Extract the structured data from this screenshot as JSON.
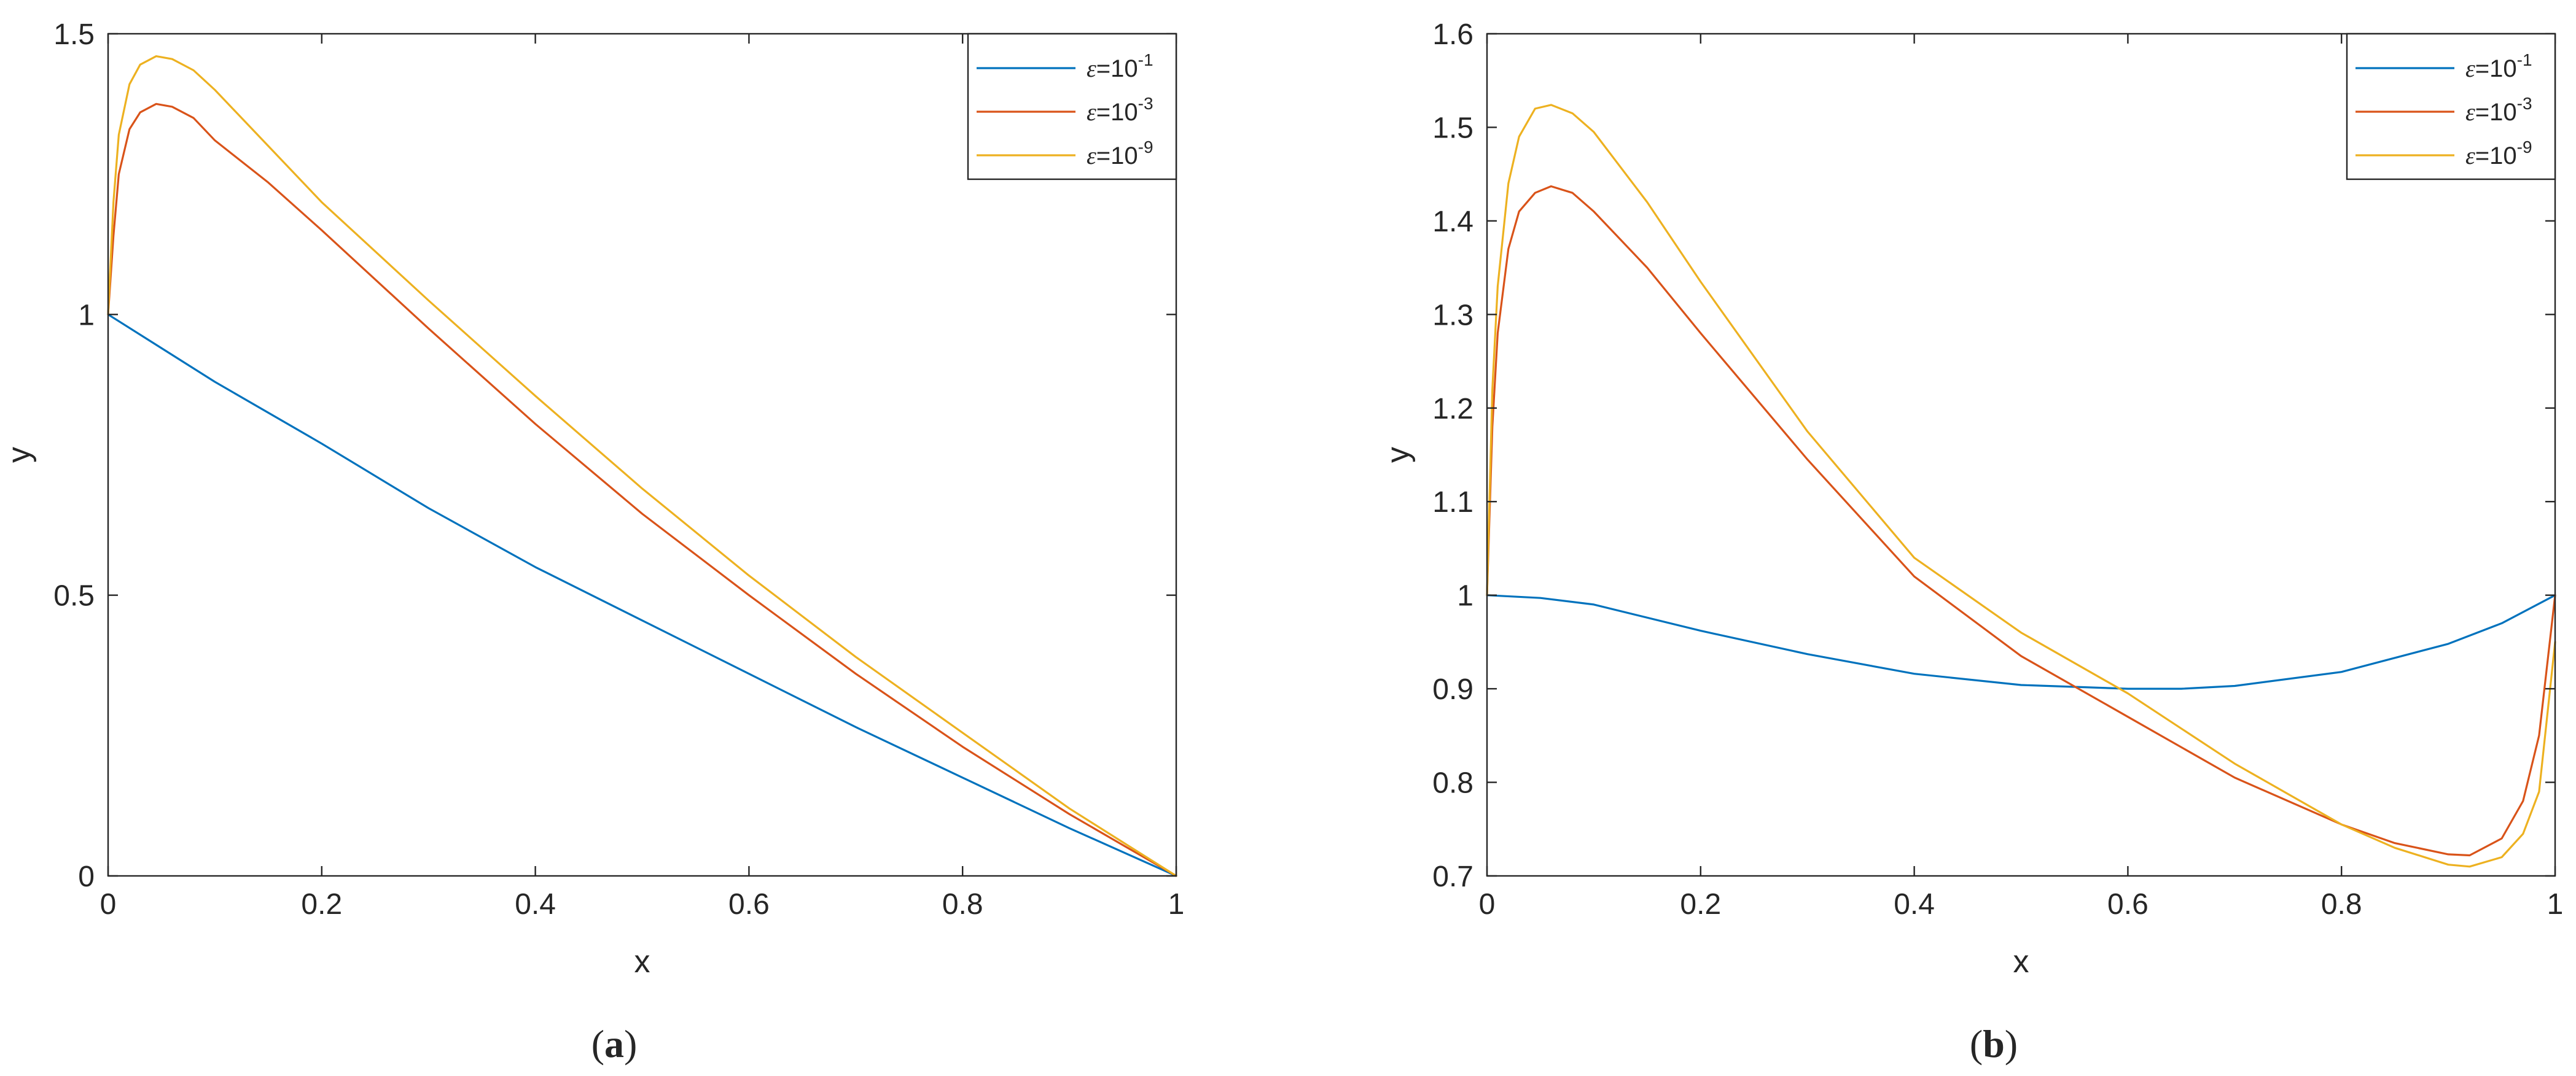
{
  "figure": {
    "captions": [
      "(a)",
      "(b)"
    ]
  },
  "legend": {
    "eps_symbol": "ε",
    "entries": [
      {
        "base": "=10",
        "exp": "-1"
      },
      {
        "base": "=10",
        "exp": "-3"
      },
      {
        "base": "=10",
        "exp": "-9"
      }
    ]
  },
  "colors": {
    "series": [
      "#0072BD",
      "#D95319",
      "#EDB120"
    ],
    "axis": "#262626",
    "background": "#ffffff"
  },
  "chart_data": [
    {
      "type": "line",
      "panel": "a",
      "xlabel": "x",
      "ylabel": "y",
      "xlim": [
        0,
        1
      ],
      "ylim": [
        0,
        1.5
      ],
      "xticks": [
        0,
        0.2,
        0.4,
        0.6,
        0.8,
        1
      ],
      "yticks": [
        0,
        0.5,
        1,
        1.5
      ],
      "xtick_labels": [
        "0",
        "0.2",
        "0.4",
        "0.6",
        "0.8",
        "1"
      ],
      "ytick_labels": [
        "0",
        "0.5",
        "1",
        "1.5"
      ],
      "legend_position": "top-right",
      "grid": false,
      "series": [
        {
          "x": [
            0,
            0.1,
            0.2,
            0.3,
            0.4,
            0.5,
            0.6,
            0.7,
            0.8,
            0.9,
            1.0
          ],
          "values": [
            1.0,
            0.88,
            0.77,
            0.655,
            0.55,
            0.455,
            0.36,
            0.265,
            0.175,
            0.085,
            0.0
          ]
        },
        {
          "x": [
            0,
            0.005,
            0.01,
            0.02,
            0.03,
            0.045,
            0.06,
            0.08,
            0.1,
            0.15,
            0.2,
            0.3,
            0.4,
            0.5,
            0.6,
            0.7,
            0.8,
            0.9,
            0.95,
            1.0
          ],
          "values": [
            1.0,
            1.14,
            1.25,
            1.33,
            1.36,
            1.375,
            1.37,
            1.35,
            1.31,
            1.235,
            1.15,
            0.975,
            0.805,
            0.645,
            0.5,
            0.36,
            0.23,
            0.11,
            0.055,
            0.0
          ]
        },
        {
          "x": [
            0,
            0.005,
            0.01,
            0.02,
            0.03,
            0.045,
            0.06,
            0.08,
            0.1,
            0.15,
            0.2,
            0.3,
            0.4,
            0.5,
            0.6,
            0.7,
            0.8,
            0.9,
            0.95,
            1.0
          ],
          "values": [
            1.0,
            1.2,
            1.32,
            1.41,
            1.445,
            1.46,
            1.455,
            1.435,
            1.4,
            1.3,
            1.2,
            1.025,
            0.855,
            0.69,
            0.535,
            0.39,
            0.255,
            0.12,
            0.06,
            0.0
          ]
        }
      ]
    },
    {
      "type": "line",
      "panel": "b",
      "xlabel": "x",
      "ylabel": "y",
      "xlim": [
        0,
        1
      ],
      "ylim": [
        0.7,
        1.6
      ],
      "xticks": [
        0,
        0.2,
        0.4,
        0.6,
        0.8,
        1
      ],
      "yticks": [
        0.7,
        0.8,
        0.9,
        1,
        1.1,
        1.2,
        1.3,
        1.4,
        1.5,
        1.6
      ],
      "xtick_labels": [
        "0",
        "0.2",
        "0.4",
        "0.6",
        "0.8",
        "1"
      ],
      "ytick_labels": [
        "0.7",
        "0.8",
        "0.9",
        "1",
        "1.1",
        "1.2",
        "1.3",
        "1.4",
        "1.5",
        "1.6"
      ],
      "legend_position": "top-right",
      "grid": false,
      "series": [
        {
          "x": [
            0,
            0.05,
            0.1,
            0.2,
            0.3,
            0.4,
            0.5,
            0.6,
            0.65,
            0.7,
            0.8,
            0.9,
            0.95,
            1.0
          ],
          "values": [
            1.0,
            0.997,
            0.99,
            0.962,
            0.937,
            0.916,
            0.904,
            0.9,
            0.9,
            0.903,
            0.918,
            0.948,
            0.97,
            1.0
          ]
        },
        {
          "x": [
            0,
            0.005,
            0.01,
            0.02,
            0.03,
            0.045,
            0.06,
            0.08,
            0.1,
            0.15,
            0.2,
            0.3,
            0.4,
            0.5,
            0.6,
            0.7,
            0.8,
            0.85,
            0.9,
            0.92,
            0.95,
            0.97,
            0.985,
            1.0
          ],
          "values": [
            1.0,
            1.18,
            1.28,
            1.37,
            1.41,
            1.43,
            1.437,
            1.43,
            1.41,
            1.35,
            1.28,
            1.145,
            1.02,
            0.935,
            0.87,
            0.805,
            0.755,
            0.735,
            0.723,
            0.722,
            0.74,
            0.78,
            0.85,
            1.0
          ]
        },
        {
          "x": [
            0,
            0.005,
            0.01,
            0.02,
            0.03,
            0.045,
            0.06,
            0.08,
            0.1,
            0.15,
            0.2,
            0.3,
            0.4,
            0.5,
            0.6,
            0.7,
            0.8,
            0.85,
            0.9,
            0.92,
            0.95,
            0.97,
            0.985,
            1.0
          ],
          "values": [
            1.0,
            1.22,
            1.33,
            1.44,
            1.49,
            1.52,
            1.524,
            1.515,
            1.495,
            1.42,
            1.335,
            1.175,
            1.04,
            0.96,
            0.895,
            0.82,
            0.755,
            0.73,
            0.712,
            0.71,
            0.72,
            0.745,
            0.79,
            0.95
          ]
        }
      ]
    }
  ]
}
